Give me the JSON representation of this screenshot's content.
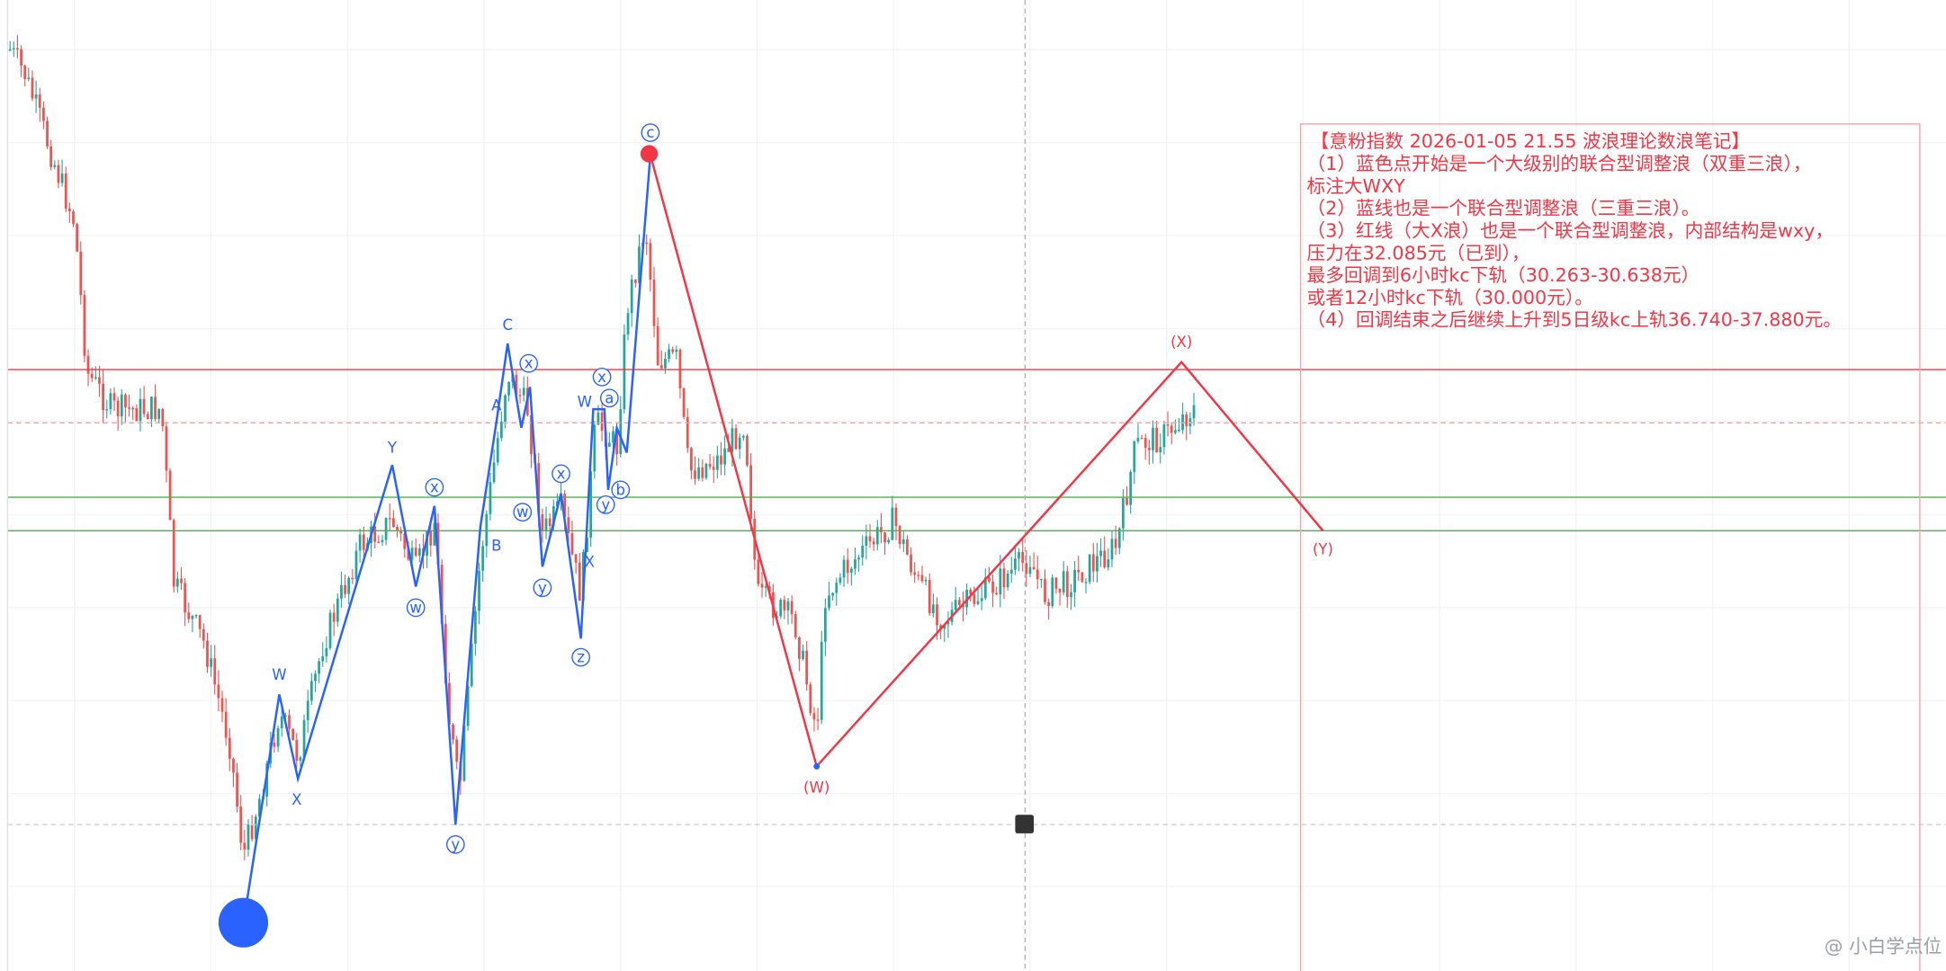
{
  "note": {
    "title": "【意粉指数 2026-01-05 21.55 波浪理论数浪笔记】",
    "lines": [
      "（1）蓝色点开始是一个大级别的联合型调整浪（双重三浪），",
      "标注大WXY",
      "（2）蓝线也是一个联合型调整浪（三重三浪）。",
      "（3）红线（大X浪）也是一个联合型调整浪，内部结构是wxy，",
      "压力在32.085元（已到），",
      "最多回调到6小时kc下轨（30.263-30.638元）",
      "或者12小时kc下轨（30.000元）。",
      "（4）回调结束之后继续上升到5日级kc上轨36.740-37.880元。"
    ]
  },
  "blue_labels": {
    "plain": [
      "W",
      "X",
      "Y",
      "C",
      "A",
      "B",
      "X",
      "W"
    ],
    "circled": [
      "x",
      "w",
      "y",
      "x",
      "w",
      "x",
      "y",
      "z",
      "x",
      "a",
      "y",
      "b",
      "c"
    ]
  },
  "red_labels": [
    "(X)",
    "(W)",
    "(Y)"
  ],
  "watermark": "@ 小白学点位"
}
